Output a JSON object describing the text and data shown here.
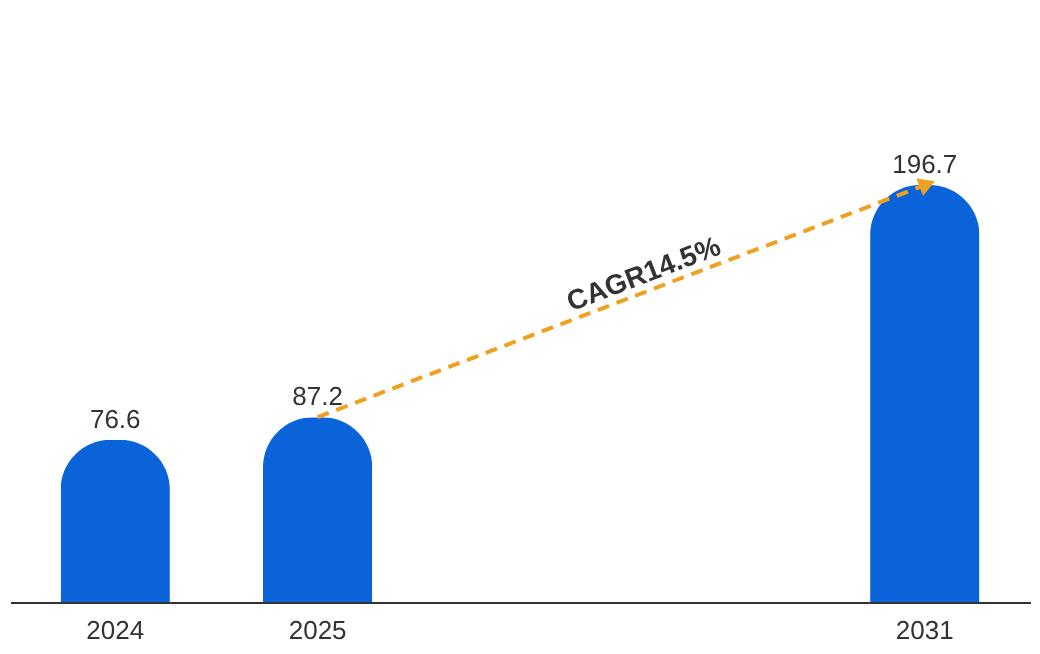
{
  "chart_data": {
    "type": "bar",
    "categories": [
      "2024",
      "2025",
      null,
      null,
      "2031"
    ],
    "values": [
      76.6,
      87.2,
      null,
      null,
      196.7
    ],
    "color": "#0b63d9",
    "data_labels": true,
    "grid": false,
    "tick_labels": "x",
    "annotations": [
      "CAGR14.5%"
    ]
  }
}
